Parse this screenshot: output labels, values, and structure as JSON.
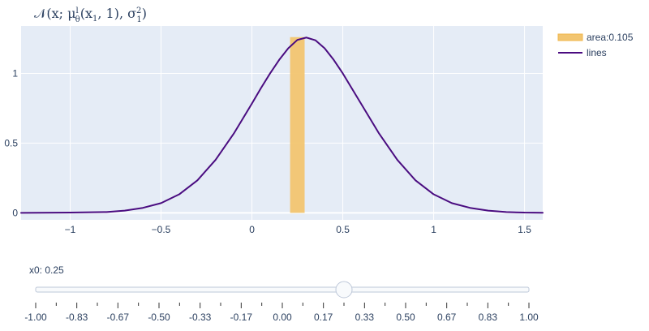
{
  "chart_data": {
    "type": "line",
    "title": {
      "main": "𝒩(x; μ",
      "sup1": "l",
      "sub1": "θ",
      "mid": "(x",
      "sub2": "1",
      "end": ", 1), σ",
      "sup2": "2",
      "sub3": "1",
      "close": ")"
    },
    "xlim": [
      -1.27,
      1.6
    ],
    "ylim": [
      -0.05,
      1.34
    ],
    "x_ticks": [
      -1,
      -0.5,
      0,
      0.5,
      1,
      1.5
    ],
    "x_tick_labels": [
      "−1",
      "−0.5",
      "0",
      "0.5",
      "1",
      "1.5"
    ],
    "y_ticks": [
      0,
      0.5,
      1
    ],
    "y_tick_labels": [
      "0",
      "0.5",
      "1"
    ],
    "grid": true,
    "legend_placement": "top-right",
    "series": [
      {
        "name": "area:0.105",
        "type": "bar",
        "color": "#f2c570",
        "x_range": [
          0.21,
          0.29
        ],
        "height": 1.26
      },
      {
        "name": "lines",
        "type": "line",
        "color": "#4a0c80",
        "x": [
          -1.27,
          -1.0,
          -0.8,
          -0.7,
          -0.6,
          -0.5,
          -0.4,
          -0.3,
          -0.2,
          -0.1,
          0.0,
          0.05,
          0.1,
          0.15,
          0.2,
          0.25,
          0.3,
          0.35,
          0.4,
          0.45,
          0.5,
          0.6,
          0.7,
          0.8,
          0.9,
          1.0,
          1.1,
          1.2,
          1.3,
          1.4,
          1.5,
          1.6
        ],
        "y": [
          0.0,
          0.002,
          0.006,
          0.016,
          0.036,
          0.07,
          0.133,
          0.233,
          0.38,
          0.568,
          0.784,
          0.895,
          1.0,
          1.097,
          1.18,
          1.24,
          1.257,
          1.237,
          1.18,
          1.097,
          1.0,
          0.784,
          0.568,
          0.38,
          0.233,
          0.133,
          0.07,
          0.036,
          0.016,
          0.006,
          0.002,
          0.001
        ]
      }
    ]
  },
  "slider": {
    "label": "x0: 0.25",
    "value": 0.25,
    "min": -1.0,
    "max": 1.0,
    "tick_labels": [
      "-1.00",
      "-0.83",
      "-0.67",
      "-0.50",
      "-0.33",
      "-0.17",
      "0.00",
      "0.17",
      "0.33",
      "0.50",
      "0.67",
      "0.83",
      "1.00"
    ]
  },
  "colors": {
    "plot_background": "#e5ecf6",
    "grid": "#ffffff",
    "text": "#2a3f5f",
    "slider_rail": "#f8fafc",
    "slider_border": "#bec8d9"
  }
}
